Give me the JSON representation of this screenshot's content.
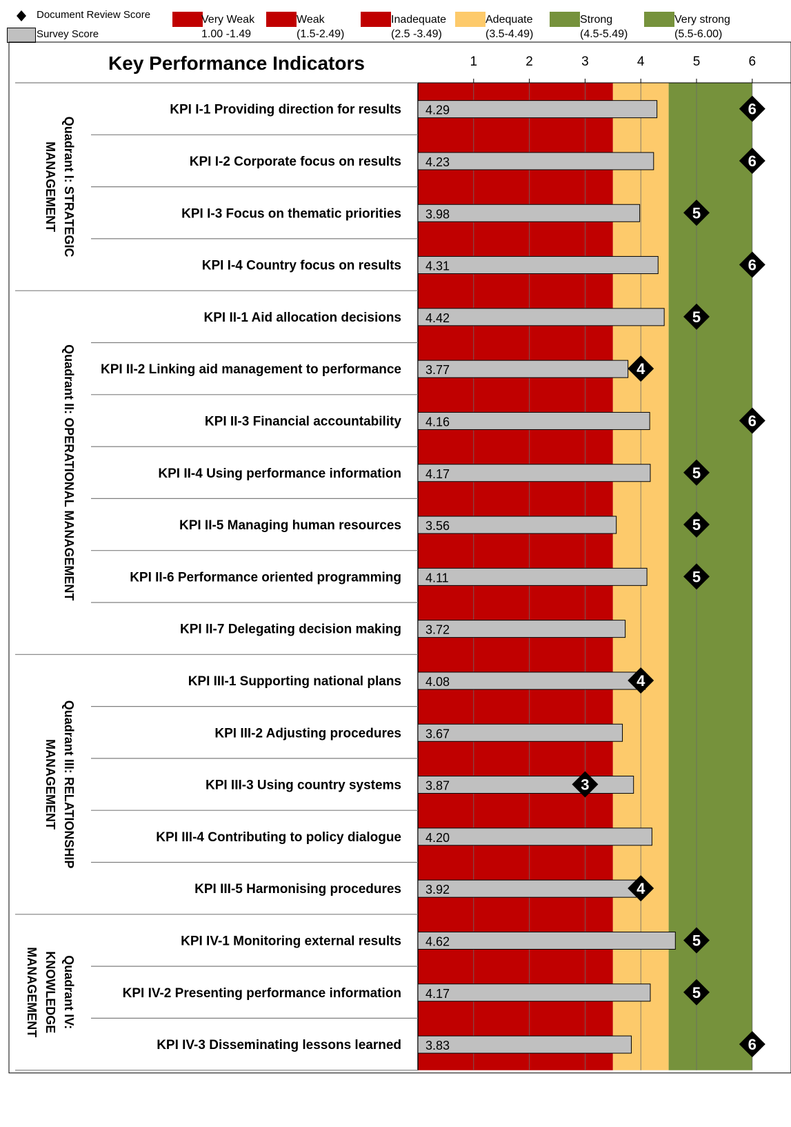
{
  "legend": {
    "markers": [
      {
        "label": "Document Review Score",
        "icon": "diamond-icon"
      },
      {
        "label": "Survey Score",
        "icon": "gray-bar-icon"
      }
    ],
    "bands": [
      {
        "name": "Very Weak",
        "range": "1.00 -1.49",
        "color": "#c00000"
      },
      {
        "name": "Weak",
        "range": "(1.5-2.49)",
        "color": "#c00000"
      },
      {
        "name": "Inadequate",
        "range": "(2.5 -3.49)",
        "color": "#c00000"
      },
      {
        "name": "Adequate",
        "range": "(3.5-4.49)",
        "color": "#fdca6b"
      },
      {
        "name": "Strong",
        "range": "(4.5-5.49)",
        "color": "#76923c"
      },
      {
        "name": "Very strong",
        "range": "(5.5-6.00)",
        "color": "#76923c"
      }
    ]
  },
  "chart_data": {
    "type": "bar",
    "title": "Key Performance Indicators",
    "xlim": [
      0,
      6
    ],
    "xticks": [
      "1",
      "2",
      "3",
      "4",
      "5",
      "6"
    ],
    "series": [
      {
        "name": "Survey Score",
        "color": "#c0c0c0"
      },
      {
        "name": "Document Review Score",
        "color": "#000000"
      }
    ],
    "quadrants": [
      {
        "label_lines": [
          "Quadrant I: STRATEGIC",
          "MANAGEMENT"
        ],
        "count": 4
      },
      {
        "label_lines": [
          "Quadrant II: OPERATIONAL MANAGEMENT"
        ],
        "count": 7
      },
      {
        "label_lines": [
          "Quadrant III: RELATIONSHIP",
          "MANAGEMENT"
        ],
        "count": 5
      },
      {
        "label_lines": [
          "Quadrant IV:",
          "KNOWLEDGE",
          "MANAGEMENT"
        ],
        "count": 3
      }
    ],
    "kpis": [
      {
        "label": "KPI I-1 Providing direction for results",
        "survey": 4.29,
        "survey_label": "4.29",
        "document": 6
      },
      {
        "label": "KPI I-2 Corporate focus on results",
        "survey": 4.23,
        "survey_label": "4.23",
        "document": 6
      },
      {
        "label": "KPI I-3 Focus on thematic priorities",
        "survey": 3.98,
        "survey_label": "3.98",
        "document": 5
      },
      {
        "label": "KPI I-4 Country focus on results",
        "survey": 4.31,
        "survey_label": "4.31",
        "document": 6
      },
      {
        "label": "KPI II-1 Aid allocation decisions",
        "survey": 4.42,
        "survey_label": "4.42",
        "document": 5
      },
      {
        "label": "KPI II-2 Linking aid management to performance",
        "survey": 3.77,
        "survey_label": "3.77",
        "document": 4
      },
      {
        "label": "KPI II-3 Financial accountability",
        "survey": 4.16,
        "survey_label": "4.16",
        "document": 6
      },
      {
        "label": "KPI II-4 Using performance information",
        "survey": 4.17,
        "survey_label": "4.17",
        "document": 5
      },
      {
        "label": "KPI II-5 Managing human resources",
        "survey": 3.56,
        "survey_label": "3.56",
        "document": 5
      },
      {
        "label": "KPI II-6 Performance oriented programming",
        "survey": 4.11,
        "survey_label": "4.11",
        "document": 5
      },
      {
        "label": "KPI II-7 Delegating decision making",
        "survey": 3.72,
        "survey_label": "3.72",
        "document": null
      },
      {
        "label": "KPI III-1 Supporting national plans",
        "survey": 4.08,
        "survey_label": "4.08",
        "document": 4
      },
      {
        "label": "KPI III-2 Adjusting procedures",
        "survey": 3.67,
        "survey_label": "3.67",
        "document": null
      },
      {
        "label": "KPI III-3 Using country systems",
        "survey": 3.87,
        "survey_label": "3.87",
        "document": 3
      },
      {
        "label": "KPI III-4 Contributing to policy dialogue",
        "survey": 4.2,
        "survey_label": "4.20",
        "document": null
      },
      {
        "label": "KPI III-5 Harmonising procedures",
        "survey": 3.92,
        "survey_label": "3.92",
        "document": 4
      },
      {
        "label": "KPI IV-1 Monitoring external results",
        "survey": 4.62,
        "survey_label": "4.62",
        "document": 5
      },
      {
        "label": "KPI IV-2 Presenting performance information",
        "survey": 4.17,
        "survey_label": "4.17",
        "document": 5
      },
      {
        "label": "KPI IV-3 Disseminating lessons learned",
        "survey": 3.83,
        "survey_label": "3.83",
        "document": 6
      }
    ],
    "bands": [
      {
        "from": 0,
        "to": 3.5,
        "color": "#c00000"
      },
      {
        "from": 3.5,
        "to": 4.5,
        "color": "#fdca6b"
      },
      {
        "from": 4.5,
        "to": 6,
        "color": "#76923c"
      }
    ],
    "grid": true
  }
}
